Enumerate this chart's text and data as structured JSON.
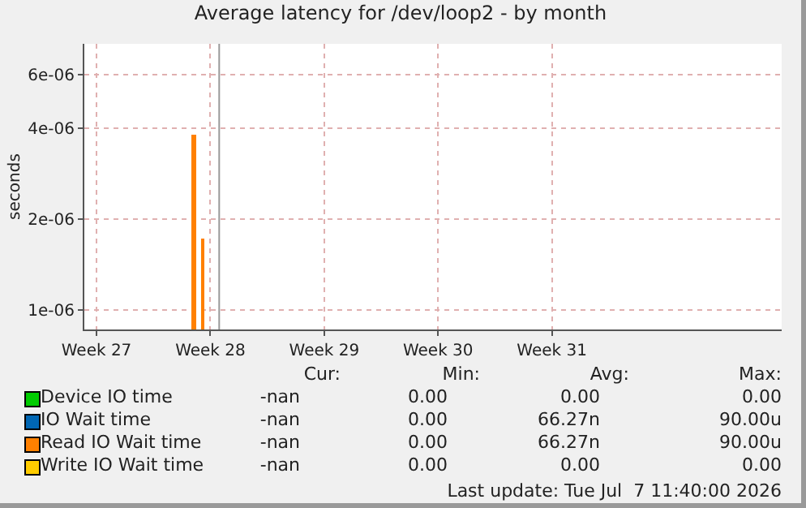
{
  "chart_data": {
    "type": "line",
    "title": "Average latency for /dev/loop2 - by month",
    "ylabel": "seconds",
    "x": [
      "2026-07-05T00:00",
      "2026-07-05T14:00"
    ],
    "series": [
      {
        "name": "Device IO time",
        "color": "#00cc00",
        "values": [
          null,
          null
        ]
      },
      {
        "name": "IO Wait time",
        "color": "#0066b3",
        "values": [
          null,
          null
        ]
      },
      {
        "name": "Read IO Wait time",
        "color": "#ff8000",
        "type": "bar",
        "values": [
          3.8e-06,
          1.73e-06
        ]
      },
      {
        "name": "Write IO Wait time",
        "color": "#ffcc00",
        "values": [
          null,
          null
        ]
      }
    ],
    "log": "y",
    "ylim": [
      8.6e-07,
      7.6e-06
    ],
    "yticks": [
      {
        "value": 1e-06,
        "label": "1e-06"
      },
      {
        "value": 2e-06,
        "label": "2e-06"
      },
      {
        "value": 4e-06,
        "label": "4e-06"
      },
      {
        "value": 6e-06,
        "label": "6e-06"
      }
    ],
    "xlim": [
      "2026-06-28T06:00",
      "2026-08-10T03:00"
    ],
    "xticks": [
      {
        "value": "2026-06-29",
        "label": "Week 27"
      },
      {
        "value": "2026-07-06",
        "label": "Week 28"
      },
      {
        "value": "2026-07-13",
        "label": "Week 29"
      },
      {
        "value": "2026-07-20",
        "label": "Week 30"
      },
      {
        "value": "2026-07-27",
        "label": "Week 31"
      }
    ],
    "ref_lines": [
      {
        "axis": "x",
        "value": "2026-07-06T13:00",
        "color": "#999999"
      }
    ],
    "grid": true,
    "legend": "bottom",
    "annotations": [
      "Cur:",
      "Min:",
      "Avg:",
      "Max:",
      "-nan",
      "0.00",
      "0.00",
      "0.00",
      "-nan",
      "0.00",
      "66.27n",
      "90.00u",
      "-nan",
      "0.00",
      "66.27n",
      "90.00u",
      "-nan",
      "0.00",
      "0.00",
      "0.00",
      "Last update: Tue Jul  7 11:40:00 2026"
    ]
  }
}
